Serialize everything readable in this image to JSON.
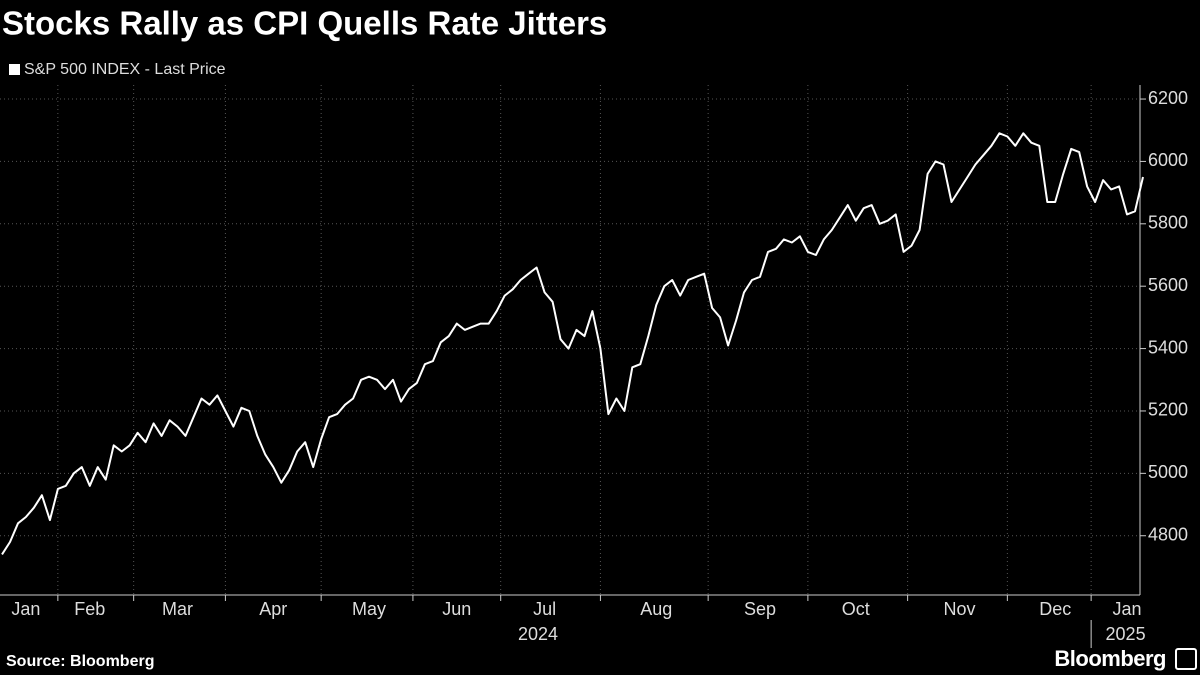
{
  "chart_data": {
    "type": "line",
    "title": "Stocks Rally as CPI Quells Rate Jitters",
    "source": "Source: Bloomberg",
    "brand": "Bloomberg",
    "year_labels": [
      "2024",
      "2025"
    ],
    "categories": [
      null,
      null,
      null,
      "Jan",
      null,
      null,
      null,
      null,
      null,
      null,
      null,
      "Feb",
      null,
      null,
      null,
      null,
      null,
      null,
      null,
      null,
      null,
      null,
      "Mar",
      null,
      null,
      null,
      null,
      null,
      null,
      null,
      null,
      null,
      null,
      null,
      "Apr",
      null,
      null,
      null,
      null,
      null,
      null,
      null,
      null,
      null,
      null,
      null,
      "May",
      null,
      null,
      null,
      null,
      null,
      null,
      null,
      null,
      null,
      null,
      "Jun",
      null,
      null,
      null,
      null,
      null,
      null,
      null,
      null,
      null,
      null,
      "Jul",
      null,
      null,
      null,
      null,
      null,
      null,
      null,
      null,
      null,
      null,
      null,
      null,
      null,
      "Aug",
      null,
      null,
      null,
      null,
      null,
      null,
      null,
      null,
      null,
      null,
      null,
      null,
      "Sep",
      null,
      null,
      null,
      null,
      null,
      null,
      null,
      null,
      null,
      null,
      null,
      "Oct",
      null,
      null,
      null,
      null,
      null,
      null,
      null,
      null,
      null,
      null,
      null,
      null,
      "Nov",
      null,
      null,
      null,
      null,
      null,
      null,
      null,
      null,
      null,
      null,
      null,
      "Dec",
      null,
      null,
      null,
      null,
      null,
      null,
      null,
      null,
      "Jan",
      null,
      null
    ],
    "series": [
      {
        "name": "S&P 500 INDEX - Last Price",
        "color": "#ffffff",
        "values": [
          4740,
          4780,
          4840,
          4860,
          4890,
          4930,
          4850,
          4950,
          4960,
          5000,
          5020,
          4960,
          5020,
          4980,
          5090,
          5070,
          5090,
          5130,
          5100,
          5160,
          5120,
          5170,
          5150,
          5120,
          5180,
          5240,
          5220,
          5250,
          5200,
          5150,
          5210,
          5200,
          5120,
          5060,
          5020,
          4970,
          5010,
          5070,
          5100,
          5020,
          5110,
          5180,
          5190,
          5220,
          5240,
          5300,
          5310,
          5300,
          5270,
          5300,
          5230,
          5270,
          5290,
          5350,
          5360,
          5420,
          5440,
          5480,
          5460,
          5470,
          5480,
          5480,
          5520,
          5570,
          5590,
          5620,
          5640,
          5660,
          5580,
          5550,
          5430,
          5400,
          5460,
          5440,
          5520,
          5400,
          5190,
          5240,
          5200,
          5340,
          5350,
          5440,
          5540,
          5600,
          5620,
          5570,
          5620,
          5630,
          5640,
          5530,
          5500,
          5410,
          5490,
          5580,
          5620,
          5630,
          5710,
          5720,
          5750,
          5740,
          5760,
          5710,
          5700,
          5750,
          5780,
          5820,
          5860,
          5810,
          5850,
          5860,
          5800,
          5810,
          5830,
          5710,
          5730,
          5780,
          5960,
          6000,
          5990,
          5870,
          5910,
          5950,
          5990,
          6020,
          6050,
          6090,
          6080,
          6050,
          6090,
          6060,
          6050,
          5870,
          5870,
          5960,
          6040,
          6030,
          5920,
          5870,
          5940,
          5910,
          5920,
          5830,
          5840,
          5950
        ]
      }
    ],
    "ylim": [
      4610,
      6245
    ],
    "yticks": [
      4800,
      5000,
      5200,
      5400,
      5600,
      5800,
      6000,
      6200
    ],
    "grid": true
  }
}
